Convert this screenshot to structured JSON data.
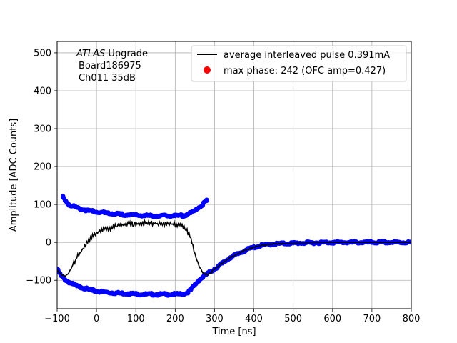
{
  "chart_data": {
    "type": "scatter",
    "title": "",
    "xlabel": "Time [ns]",
    "ylabel": "Amplitude [ADC Counts]",
    "xlim": [
      -100,
      800
    ],
    "ylim": [
      -175,
      530
    ],
    "xticks": [
      -100,
      0,
      100,
      200,
      300,
      400,
      500,
      600,
      700,
      800
    ],
    "yticks": [
      -100,
      0,
      100,
      200,
      300,
      400,
      500
    ],
    "grid": true,
    "legend_position": "top-right",
    "annotation": {
      "line1_italic": "ATLAS",
      "line1_rest": " Upgrade",
      "line2": "Board186975",
      "line3": "Ch011 35dB"
    },
    "series": [
      {
        "name": "average interleaved pulse 0.391mA",
        "kind": "line",
        "color": "#000000",
        "x": [
          -100,
          -90,
          -80,
          -70,
          -60,
          -50,
          -40,
          -30,
          -20,
          -10,
          0,
          20,
          40,
          60,
          80,
          100,
          120,
          140,
          160,
          180,
          200,
          220,
          230,
          240,
          250,
          260,
          270,
          280,
          290,
          300,
          320,
          340,
          360,
          380,
          400,
          420,
          450,
          500,
          550,
          600,
          650,
          700,
          750,
          800
        ],
        "y": [
          -75,
          -85,
          -90,
          -80,
          -60,
          -40,
          -25,
          -10,
          5,
          15,
          25,
          35,
          40,
          45,
          48,
          50,
          50,
          50,
          50,
          50,
          48,
          45,
          30,
          10,
          -30,
          -60,
          -80,
          -85,
          -80,
          -70,
          -55,
          -40,
          -30,
          -20,
          -13,
          -8,
          -4,
          -2,
          -1,
          0,
          0,
          0,
          0,
          0
        ]
      },
      {
        "name": "max phase: 242 (OFC amp=0.427)",
        "kind": "scatter",
        "color": "#ff0000",
        "x": [],
        "y": []
      },
      {
        "name": "",
        "kind": "scatter",
        "color": "#0000ff",
        "x": [
          -100,
          -90,
          -80,
          -70,
          -60,
          -50,
          -40,
          -30,
          -20,
          -10,
          0,
          20,
          40,
          60,
          80,
          100,
          120,
          140,
          160,
          180,
          200,
          220,
          230,
          240,
          250,
          260,
          270,
          280,
          290,
          300,
          320,
          340,
          360,
          380,
          400,
          420,
          450,
          500,
          550,
          600,
          650,
          700,
          750,
          800
        ],
        "y": [
          -70,
          -88,
          -98,
          -105,
          -110,
          -115,
          -118,
          -121,
          -124,
          -127,
          -129,
          -131,
          -133,
          -134,
          -135,
          -136,
          -137,
          -137,
          -137,
          -137,
          -137,
          -136,
          -133,
          -125,
          -112,
          -100,
          -92,
          -84,
          -77,
          -70,
          -55,
          -40,
          -30,
          -20,
          -13,
          -8,
          -4,
          -2,
          -1,
          0,
          0,
          0,
          0,
          0
        ]
      },
      {
        "name": "",
        "kind": "scatter",
        "color": "#0000ff",
        "x": [
          -85,
          -70,
          -60,
          -50,
          -40,
          -30,
          -20,
          -10,
          0,
          20,
          40,
          60,
          80,
          100,
          120,
          140,
          160,
          180,
          200,
          220,
          230,
          240,
          250,
          260,
          270,
          280
        ],
        "y": [
          119,
          100,
          96,
          92,
          88,
          86,
          84,
          82,
          80,
          78,
          76,
          74,
          73,
          72,
          71,
          70,
          70,
          70,
          70,
          71,
          74,
          78,
          84,
          92,
          100,
          110
        ]
      }
    ]
  }
}
